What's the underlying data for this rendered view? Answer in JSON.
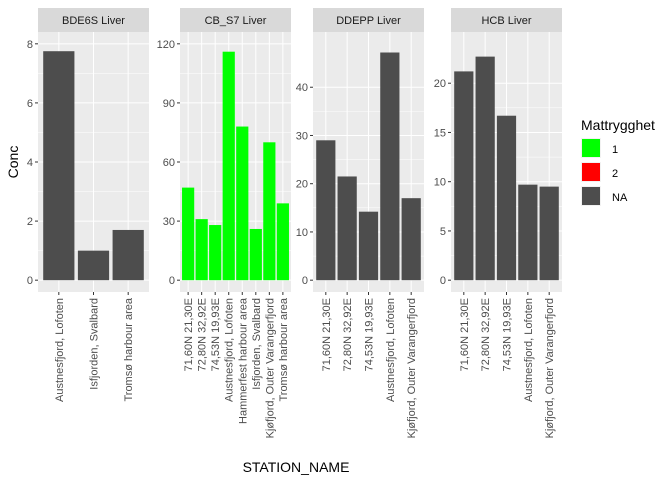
{
  "chart_data": {
    "type": "bar",
    "y_label": "Conc",
    "x_label": "STATION_NAME",
    "legend": {
      "title": "Mattrygghet",
      "position": "right",
      "entries": [
        {
          "label": "1",
          "color": "#00FF00"
        },
        {
          "label": "2",
          "color": "#FF0000"
        },
        {
          "label": "NA",
          "color": "#4D4D4D"
        }
      ]
    },
    "colors": {
      "1": "#00FF00",
      "2": "#FF0000",
      "NA": "#4D4D4D",
      "panel_bg": "#EBEBEB",
      "strip_bg": "#D9D9D9",
      "grid": "#FFFFFF"
    },
    "panels": [
      {
        "title": "BDE6S Liver",
        "ylim": [
          0,
          8
        ],
        "yticks": [
          0,
          2,
          4,
          6,
          8
        ],
        "categories": [
          "Austnesfjord, Lofoten",
          "Isfjorden, Svalbard",
          "Tromsø harbour area"
        ],
        "values": [
          7.75,
          1.0,
          1.7
        ],
        "groups": [
          "NA",
          "NA",
          "NA"
        ]
      },
      {
        "title": "CB_S7 Liver",
        "ylim": [
          0,
          120
        ],
        "yticks": [
          0,
          30,
          60,
          90,
          120
        ],
        "categories": [
          "71,60N 21,30E",
          "72,80N 32,92E",
          "74,53N 19,93E",
          "Austnesfjord, Lofoten",
          "Hammerfest harbour area",
          "Isfjorden, Svalbard",
          "Kjøfjord, Outer Varangerfjord",
          "Tromsø harbour area"
        ],
        "values": [
          47,
          31,
          28,
          116,
          78,
          26,
          70,
          39
        ],
        "groups": [
          "1",
          "1",
          "1",
          "1",
          "1",
          "1",
          "1",
          "1"
        ]
      },
      {
        "title": "DDEPP Liver",
        "ylim": [
          0,
          49
        ],
        "yticks": [
          0,
          10,
          20,
          30,
          40
        ],
        "categories": [
          "71,60N 21,30E",
          "72,80N 32,92E",
          "74,53N 19,93E",
          "Austnesfjord, Lofoten",
          "Kjøfjord, Outer Varangerfjord"
        ],
        "values": [
          29,
          21.5,
          14.2,
          47.2,
          17
        ],
        "groups": [
          "NA",
          "NA",
          "NA",
          "NA",
          "NA"
        ]
      },
      {
        "title": "HCB Liver",
        "ylim": [
          0,
          24
        ],
        "yticks": [
          0,
          5,
          10,
          15,
          20
        ],
        "categories": [
          "71,60N 21,30E",
          "72,80N 32,92E",
          "74,53N 19,93E",
          "Austnesfjord, Lofoten",
          "Kjøfjord, Outer Varangerfjord"
        ],
        "values": [
          21.2,
          22.7,
          16.7,
          9.7,
          9.5
        ],
        "groups": [
          "NA",
          "NA",
          "NA",
          "NA",
          "NA"
        ]
      }
    ]
  }
}
